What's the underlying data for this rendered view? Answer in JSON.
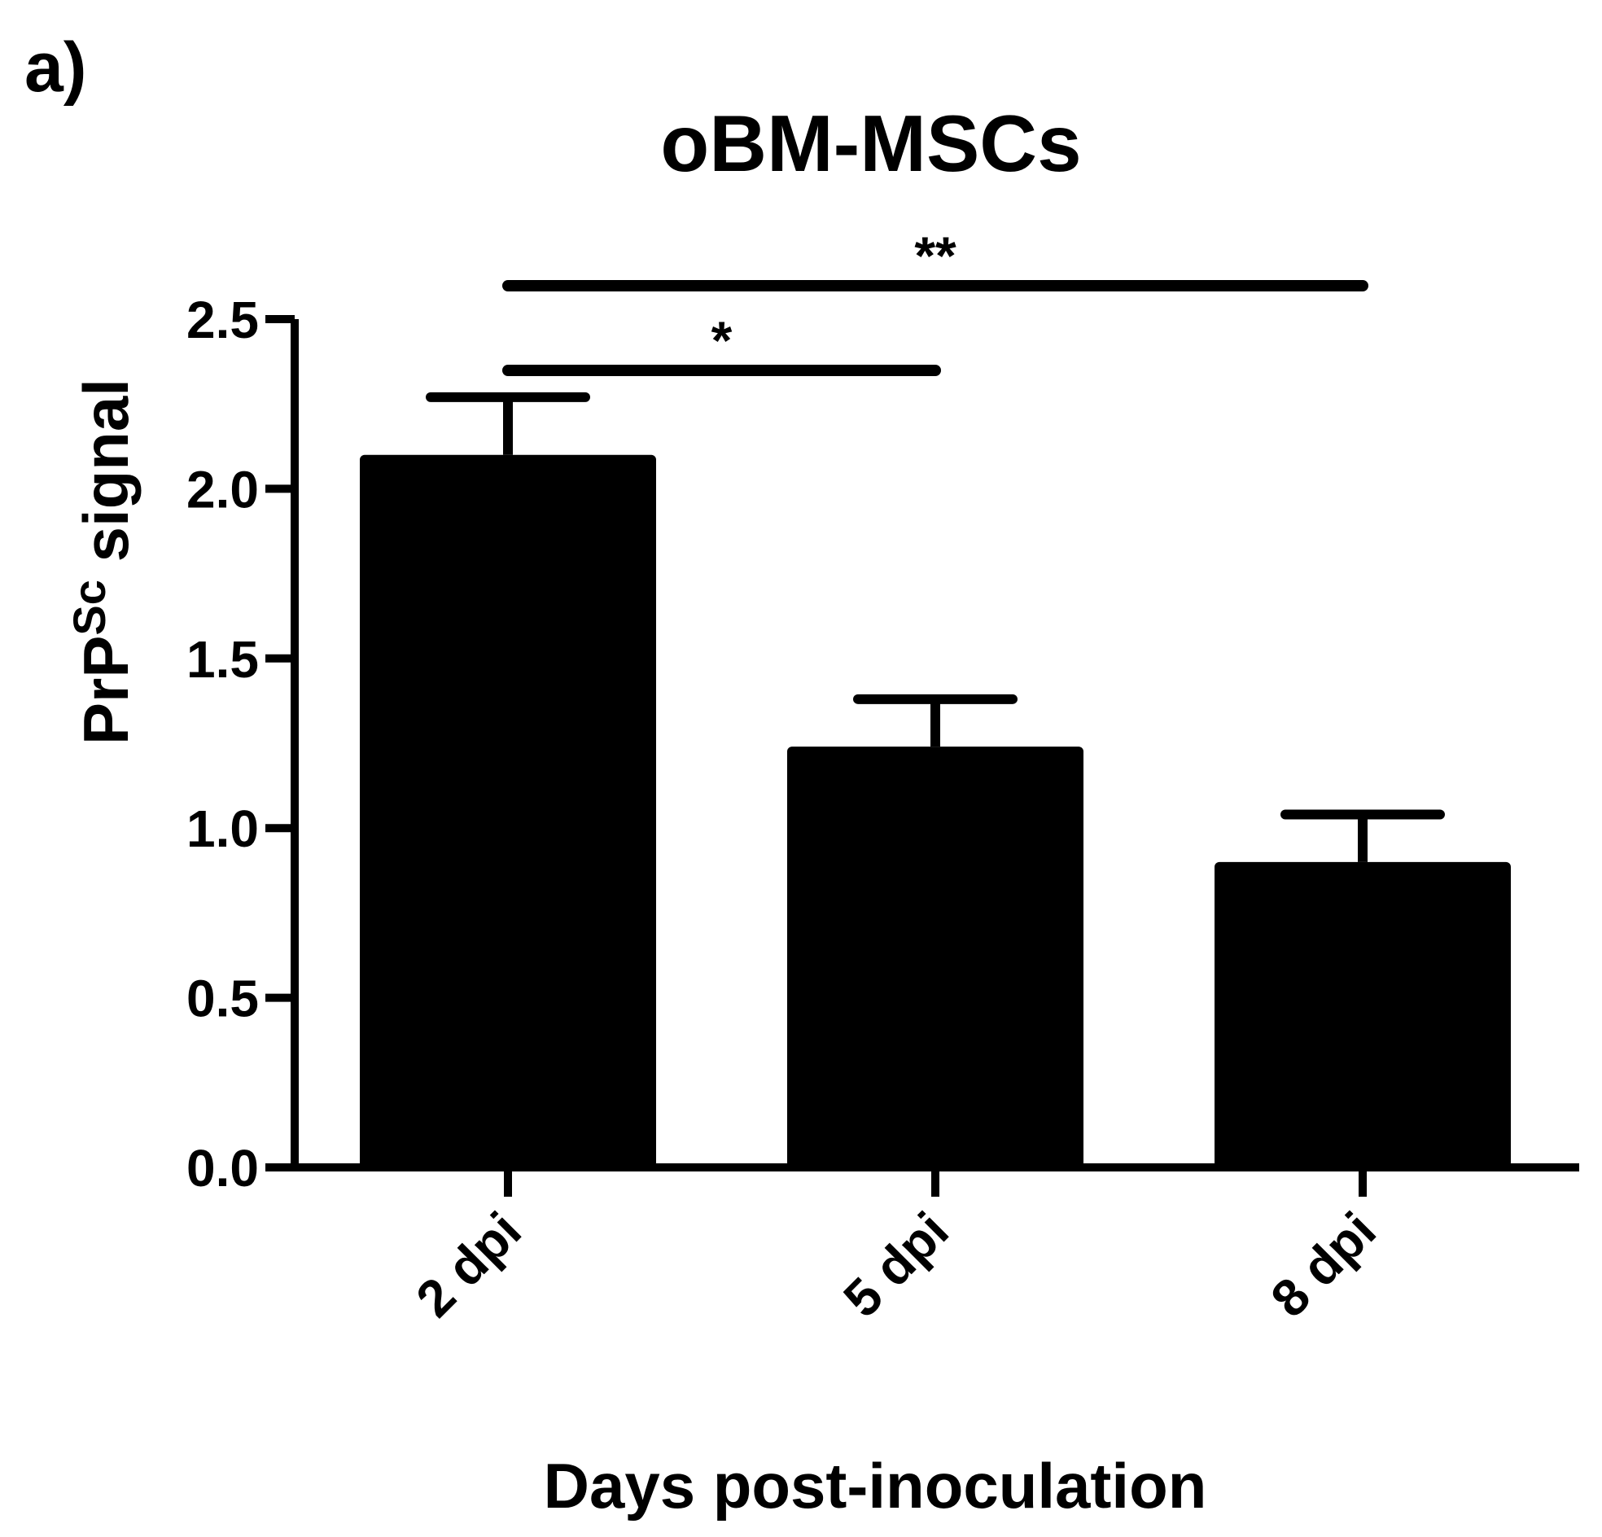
{
  "panel_label": "a)",
  "chart_data": {
    "type": "bar",
    "title": "oBM-MSCs",
    "xlabel": "Days post-inoculation",
    "ylabel": {
      "main": "PrP",
      "superscript": "Sc",
      "suffix": " signal"
    },
    "categories": [
      "2 dpi",
      "5 dpi",
      "8 dpi"
    ],
    "values": [
      2.1,
      1.24,
      0.9
    ],
    "error_upper": [
      0.17,
      0.14,
      0.14
    ],
    "ylim": [
      0,
      2.5
    ],
    "yticks": [
      "0.0",
      "0.5",
      "1.0",
      "1.5",
      "2.0",
      "2.5"
    ],
    "bar_color": "#000000",
    "grid": false,
    "significance": [
      {
        "from": 0,
        "to": 1,
        "label": "*"
      },
      {
        "from": 0,
        "to": 2,
        "label": "**"
      }
    ]
  }
}
